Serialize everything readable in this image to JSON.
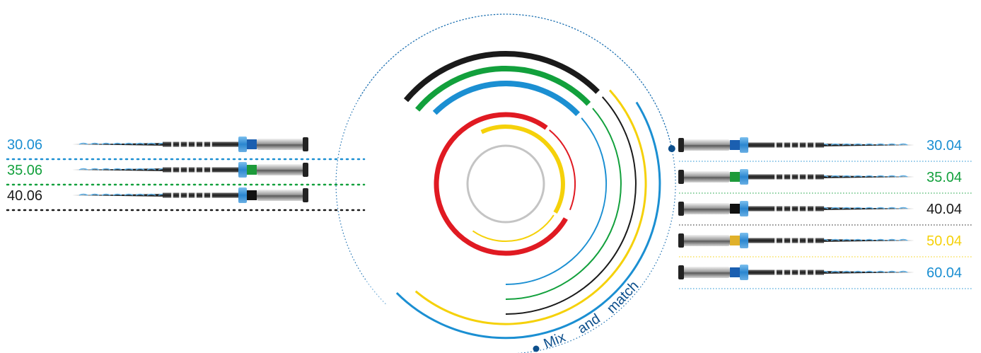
{
  "colors": {
    "blue": "#1b8fd2",
    "green": "#12a03c",
    "black": "#1a1a1a",
    "red": "#e01a22",
    "yellow": "#f5d10a",
    "grey": "#c4c4c4",
    "navy": "#0d4f8c"
  },
  "left_files": [
    {
      "label": "30.06",
      "color": "#1b8fd2",
      "band": "#1b5fb0"
    },
    {
      "label": "35.06",
      "color": "#12a03c",
      "band": "#1d9a3a"
    },
    {
      "label": "40.06",
      "color": "#1a1a1a",
      "band": "#111111"
    }
  ],
  "right_files": [
    {
      "label": "30.04",
      "color": "#1b8fd2",
      "band": "#1b5fb0"
    },
    {
      "label": "35.04",
      "color": "#12a03c",
      "band": "#1d9a3a"
    },
    {
      "label": "40.04",
      "color": "#1a1a1a",
      "band": "#111111"
    },
    {
      "label": "50.04",
      "color": "#f5d10a",
      "band": "#e0b12a"
    },
    {
      "label": "60.04",
      "color": "#1b8fd2",
      "band": "#1b5fb0"
    }
  ],
  "tagline": {
    "word1": "Mix",
    "word2": "and",
    "word3": "match"
  },
  "icons": [
    "endodontic-file-icon"
  ]
}
